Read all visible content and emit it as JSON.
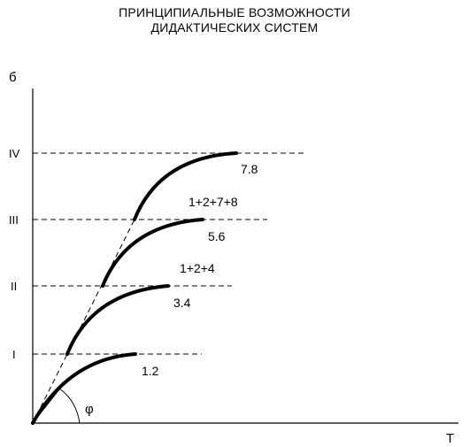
{
  "title": {
    "line1": "ПРИНЦИПИАЛЬНЫЕ ВОЗМОЖНОСТИ",
    "line2": "ДИДАКТИЧЕСКИХ СИСТЕМ"
  },
  "axes": {
    "y_label": "б",
    "x_label": "T",
    "angle_label": "φ"
  },
  "levels": [
    {
      "name": "I"
    },
    {
      "name": "II"
    },
    {
      "name": "III"
    },
    {
      "name": "IV"
    }
  ],
  "curve_labels": [
    {
      "name": "1.2"
    },
    {
      "name": "3.4"
    },
    {
      "name": "1+2+4"
    },
    {
      "name": "5.6"
    },
    {
      "name": "1+2+7+8"
    },
    {
      "name": "7.8"
    }
  ],
  "colors": {
    "ink": "#000000",
    "background": "#ffffff"
  }
}
